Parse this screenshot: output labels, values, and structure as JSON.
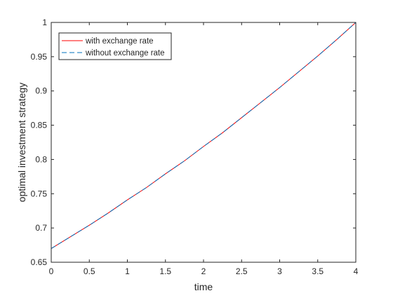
{
  "chart_data": {
    "type": "line",
    "title": "",
    "xlabel": "time",
    "ylabel": "optimal investment strategy",
    "xlim": [
      0,
      4
    ],
    "ylim": [
      0.65,
      1
    ],
    "x_ticks": [
      0,
      0.5,
      1,
      1.5,
      2,
      2.5,
      3,
      3.5,
      4
    ],
    "y_ticks": [
      0.65,
      0.7,
      0.75,
      0.8,
      0.85,
      0.9,
      0.95,
      1
    ],
    "x_tick_labels": [
      "0",
      "0.5",
      "1",
      "1.5",
      "2",
      "2.5",
      "3",
      "3.5",
      "4"
    ],
    "y_tick_labels": [
      "0.65",
      "0.7",
      "0.75",
      "0.8",
      "0.85",
      "0.9",
      "0.95",
      "1"
    ],
    "grid": false,
    "legend_position": "top-left",
    "x": [
      0,
      0.25,
      0.5,
      0.75,
      1,
      1.25,
      1.5,
      1.75,
      2,
      2.25,
      2.5,
      2.75,
      3,
      3.25,
      3.5,
      3.75,
      4
    ],
    "series": [
      {
        "name": "with exchange rate",
        "color": "#ff0000",
        "line_style": "solid",
        "values": [
          0.67,
          0.687,
          0.704,
          0.722,
          0.741,
          0.759,
          0.779,
          0.798,
          0.819,
          0.839,
          0.861,
          0.883,
          0.905,
          0.928,
          0.951,
          0.975,
          1.0
        ]
      },
      {
        "name": "without exchange rate",
        "color": "#0072bd",
        "line_style": "dashed",
        "values": [
          0.67,
          0.687,
          0.704,
          0.722,
          0.741,
          0.759,
          0.779,
          0.798,
          0.819,
          0.839,
          0.861,
          0.883,
          0.905,
          0.928,
          0.951,
          0.975,
          1.0
        ]
      }
    ]
  }
}
